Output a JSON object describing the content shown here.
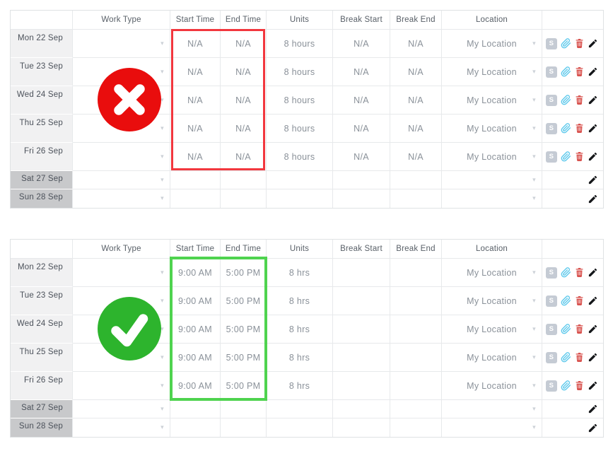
{
  "columns": [
    {
      "key": "date",
      "label": ""
    },
    {
      "key": "work-type",
      "label": "Work Type"
    },
    {
      "key": "start-time",
      "label": "Start Time"
    },
    {
      "key": "end-time",
      "label": "End Time"
    },
    {
      "key": "units",
      "label": "Units"
    },
    {
      "key": "break-start",
      "label": "Break Start"
    },
    {
      "key": "break-end",
      "label": "Break End"
    },
    {
      "key": "location",
      "label": "Location"
    },
    {
      "key": "actions",
      "label": ""
    }
  ],
  "icons": {
    "shift_badge": "S",
    "chevron": "▾",
    "paperclip_color": "#5ec9ec",
    "trash_color": "#d8524e",
    "pencil_color": "#15171a",
    "shift_badge_color": "#c5cbd4"
  },
  "tables": [
    {
      "id": "incorrect-entry",
      "status_icon": "cross-icon",
      "status_color": "#e90d0d",
      "highlight_color": "#f2373e",
      "rows": [
        {
          "date": "Mon 22 Sep",
          "weekend": false,
          "work_type": "",
          "start_time": "N/A",
          "end_time": "N/A",
          "units": "8 hours",
          "break_start": "N/A",
          "break_end": "N/A",
          "location": "My Location",
          "actions": [
            "shift",
            "attachment",
            "delete",
            "edit"
          ]
        },
        {
          "date": "Tue 23 Sep",
          "weekend": false,
          "work_type": "",
          "start_time": "N/A",
          "end_time": "N/A",
          "units": "8 hours",
          "break_start": "N/A",
          "break_end": "N/A",
          "location": "My Location",
          "actions": [
            "shift",
            "attachment",
            "delete",
            "edit"
          ]
        },
        {
          "date": "Wed 24 Sep",
          "weekend": false,
          "work_type": "",
          "start_time": "N/A",
          "end_time": "N/A",
          "units": "8 hours",
          "break_start": "N/A",
          "break_end": "N/A",
          "location": "My Location",
          "actions": [
            "shift",
            "attachment",
            "delete",
            "edit"
          ]
        },
        {
          "date": "Thu 25 Sep",
          "weekend": false,
          "work_type": "",
          "start_time": "N/A",
          "end_time": "N/A",
          "units": "8 hours",
          "break_start": "N/A",
          "break_end": "N/A",
          "location": "My Location",
          "actions": [
            "shift",
            "attachment",
            "delete",
            "edit"
          ]
        },
        {
          "date": "Fri 26 Sep",
          "weekend": false,
          "work_type": "",
          "start_time": "N/A",
          "end_time": "N/A",
          "units": "8 hours",
          "break_start": "N/A",
          "break_end": "N/A",
          "location": "My Location",
          "actions": [
            "shift",
            "attachment",
            "delete",
            "edit"
          ]
        },
        {
          "date": "Sat 27 Sep",
          "weekend": true,
          "work_type": "",
          "start_time": "",
          "end_time": "",
          "units": "",
          "break_start": "",
          "break_end": "",
          "location": "",
          "actions": [
            "edit"
          ]
        },
        {
          "date": "Sun 28 Sep",
          "weekend": true,
          "work_type": "",
          "start_time": "",
          "end_time": "",
          "units": "",
          "break_start": "",
          "break_end": "",
          "location": "",
          "actions": [
            "edit"
          ]
        }
      ]
    },
    {
      "id": "correct-entry",
      "status_icon": "check-icon",
      "status_color": "#2db42d",
      "highlight_color": "#4fd34f",
      "rows": [
        {
          "date": "Mon 22 Sep",
          "weekend": false,
          "work_type": "",
          "start_time": "9:00 AM",
          "end_time": "5:00 PM",
          "units": "8 hrs",
          "break_start": "",
          "break_end": "",
          "location": "My Location",
          "actions": [
            "shift",
            "attachment",
            "delete",
            "edit"
          ]
        },
        {
          "date": "Tue 23 Sep",
          "weekend": false,
          "work_type": "",
          "start_time": "9:00 AM",
          "end_time": "5:00 PM",
          "units": "8 hrs",
          "break_start": "",
          "break_end": "",
          "location": "My Location",
          "actions": [
            "shift",
            "attachment",
            "delete",
            "edit"
          ]
        },
        {
          "date": "Wed 24 Sep",
          "weekend": false,
          "work_type": "",
          "start_time": "9:00 AM",
          "end_time": "5:00 PM",
          "units": "8 hrs",
          "break_start": "",
          "break_end": "",
          "location": "My Location",
          "actions": [
            "shift",
            "attachment",
            "delete",
            "edit"
          ]
        },
        {
          "date": "Thu 25 Sep",
          "weekend": false,
          "work_type": "",
          "start_time": "9:00 AM",
          "end_time": "5:00 PM",
          "units": "8 hrs",
          "break_start": "",
          "break_end": "",
          "location": "My Location",
          "actions": [
            "shift",
            "attachment",
            "delete",
            "edit"
          ]
        },
        {
          "date": "Fri 26 Sep",
          "weekend": false,
          "work_type": "",
          "start_time": "9:00 AM",
          "end_time": "5:00 PM",
          "units": "8 hrs",
          "break_start": "",
          "break_end": "",
          "location": "My Location",
          "actions": [
            "shift",
            "attachment",
            "delete",
            "edit"
          ]
        },
        {
          "date": "Sat 27 Sep",
          "weekend": true,
          "work_type": "",
          "start_time": "",
          "end_time": "",
          "units": "",
          "break_start": "",
          "break_end": "",
          "location": "",
          "actions": [
            "edit"
          ]
        },
        {
          "date": "Sun 28 Sep",
          "weekend": true,
          "work_type": "",
          "start_time": "",
          "end_time": "",
          "units": "",
          "break_start": "",
          "break_end": "",
          "location": "",
          "actions": [
            "edit"
          ]
        }
      ]
    }
  ]
}
